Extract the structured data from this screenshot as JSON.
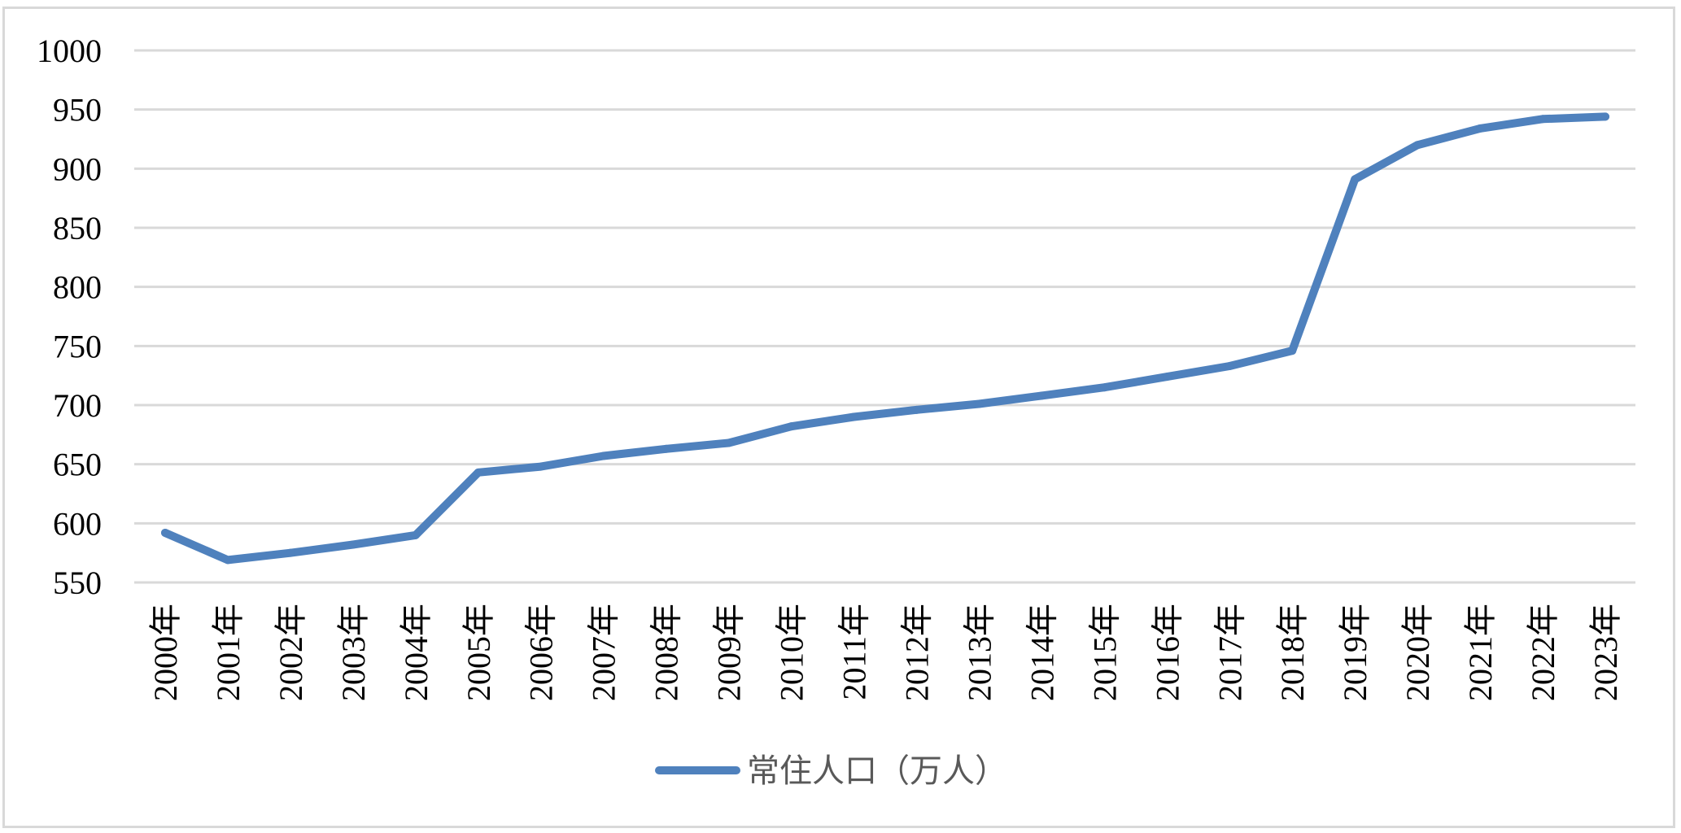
{
  "chart_data": {
    "type": "line",
    "categories": [
      "2000年",
      "2001年",
      "2002年",
      "2003年",
      "2004年",
      "2005年",
      "2006年",
      "2007年",
      "2008年",
      "2009年",
      "2010年",
      "2011年",
      "2012年",
      "2013年",
      "2014年",
      "2015年",
      "2016年",
      "2017年",
      "2018年",
      "2019年",
      "2020年",
      "2021年",
      "2022年",
      "2023年"
    ],
    "series": [
      {
        "name": "常住人口（万人）",
        "values": [
          592,
          569,
          575,
          582,
          590,
          643,
          648,
          657,
          663,
          668,
          682,
          690,
          696,
          701,
          708,
          715,
          724,
          733,
          746,
          891,
          920,
          934,
          942,
          944
        ],
        "color": "#4f81bd"
      }
    ],
    "ylim": [
      550,
      1000
    ],
    "yticks": [
      550,
      600,
      650,
      700,
      750,
      800,
      850,
      900,
      950,
      1000
    ],
    "ytick_labels": [
      "550",
      "600",
      "650",
      "700",
      "750",
      "800",
      "850",
      "900",
      "950",
      "1000"
    ],
    "grid": true,
    "legend_position": "bottom",
    "title": "",
    "xlabel": "",
    "ylabel": ""
  }
}
